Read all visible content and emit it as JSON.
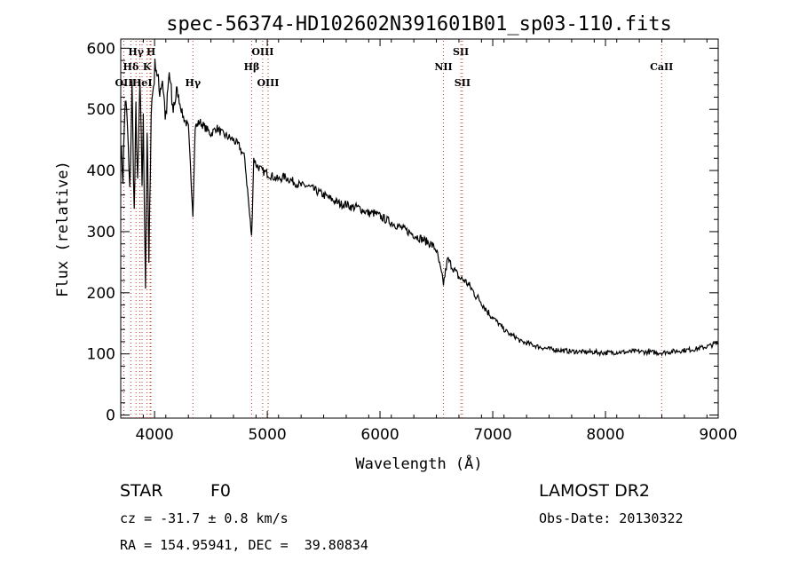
{
  "chart_data": {
    "type": "line",
    "title": "spec-56374-HD102602N391601B01_sp03-110.fits",
    "xlabel": "Wavelength (Å)",
    "ylabel": "Flux (relative)",
    "xlim": [
      3700,
      9000
    ],
    "ylim": [
      -5,
      615
    ],
    "x_ticks": [
      4000,
      5000,
      6000,
      7000,
      8000,
      9000
    ],
    "y_ticks": [
      0,
      100,
      200,
      300,
      400,
      500,
      600
    ],
    "grid": false,
    "series": [
      {
        "x": [
          3700,
          3720,
          3740,
          3760,
          3780,
          3800,
          3820,
          3835,
          3850,
          3870,
          3889,
          3900,
          3920,
          3934,
          3950,
          3970,
          3990,
          4010,
          4040,
          4070,
          4101,
          4130,
          4160,
          4200,
          4250,
          4300,
          4340,
          4360,
          4400,
          4450,
          4500,
          4550,
          4600,
          4650,
          4700,
          4750,
          4800,
          4861,
          4880,
          4900,
          4950,
          5000,
          5050,
          5100,
          5150,
          5200,
          5250,
          5300,
          5350,
          5400,
          5450,
          5500,
          5550,
          5600,
          5650,
          5700,
          5750,
          5800,
          5850,
          5900,
          5950,
          6000,
          6050,
          6100,
          6150,
          6200,
          6250,
          6300,
          6350,
          6400,
          6450,
          6500,
          6563,
          6600,
          6650,
          6700,
          6750,
          6800,
          6850,
          6900,
          6950,
          7000,
          7050,
          7100,
          7150,
          7200,
          7250,
          7300,
          7350,
          7400,
          7450,
          7500,
          7550,
          7600,
          7650,
          7700,
          7750,
          7800,
          7850,
          7900,
          7950,
          8000,
          8050,
          8100,
          8150,
          8200,
          8250,
          8300,
          8350,
          8400,
          8450,
          8500,
          8550,
          8600,
          8650,
          8700,
          8750,
          8800,
          8850,
          8900,
          8950,
          9000
        ],
        "y": [
          440,
          390,
          520,
          470,
          360,
          540,
          330,
          500,
          370,
          545,
          380,
          480,
          215,
          470,
          240,
          500,
          540,
          580,
          530,
          550,
          480,
          560,
          500,
          530,
          490,
          470,
          330,
          470,
          480,
          470,
          460,
          470,
          460,
          455,
          450,
          440,
          420,
          290,
          420,
          410,
          400,
          395,
          390,
          385,
          390,
          385,
          380,
          375,
          375,
          370,
          365,
          360,
          355,
          350,
          345,
          345,
          340,
          340,
          335,
          330,
          330,
          325,
          320,
          315,
          310,
          305,
          300,
          295,
          290,
          285,
          280,
          270,
          215,
          255,
          240,
          225,
          220,
          210,
          195,
          185,
          170,
          160,
          150,
          140,
          132,
          128,
          120,
          118,
          115,
          112,
          110,
          108,
          107,
          106,
          105,
          104,
          104,
          103,
          103,
          103,
          102,
          102,
          102,
          103,
          103,
          103,
          104,
          104,
          103,
          103,
          102,
          102,
          103,
          104,
          105,
          106,
          107,
          108,
          110,
          112,
          115,
          118
        ]
      }
    ],
    "lines": [
      {
        "name": "OII",
        "x": 3727,
        "row": 3
      },
      {
        "name": "Hδ",
        "x": 3790,
        "row": 2
      },
      {
        "name": "Hγ",
        "x": 3835,
        "row": 1
      },
      {
        "name": "He",
        "x": 3870,
        "row": 3
      },
      {
        "name": "K",
        "x": 3934,
        "row": 2
      },
      {
        "name": "H",
        "x": 3968,
        "row": 1
      },
      {
        "name": "",
        "x": 3889,
        "row": 0
      },
      {
        "name": "I",
        "x": 3960,
        "row": 3
      },
      {
        "name": "Hγ",
        "x": 4340,
        "row": 3
      },
      {
        "name": "Hβ",
        "x": 4861,
        "row": 2
      },
      {
        "name": "OIII",
        "x": 4959,
        "row": 1
      },
      {
        "name": "OIII",
        "x": 5007,
        "row": 3
      },
      {
        "name": "NII",
        "x": 6563,
        "row": 2
      },
      {
        "name": "SII",
        "x": 6717,
        "row": 1
      },
      {
        "name": "SII",
        "x": 6731,
        "row": 3
      },
      {
        "name": "CaII",
        "x": 8498,
        "row": 2
      }
    ]
  },
  "info": {
    "class_label": "STAR",
    "subclass": "F0",
    "cz": "cz = -31.7 ± 0.8 km/s",
    "coords": "RA = 154.95941, DEC =  39.80834",
    "survey": "LAMOST DR2",
    "obs_date": "Obs-Date: 20130322"
  }
}
